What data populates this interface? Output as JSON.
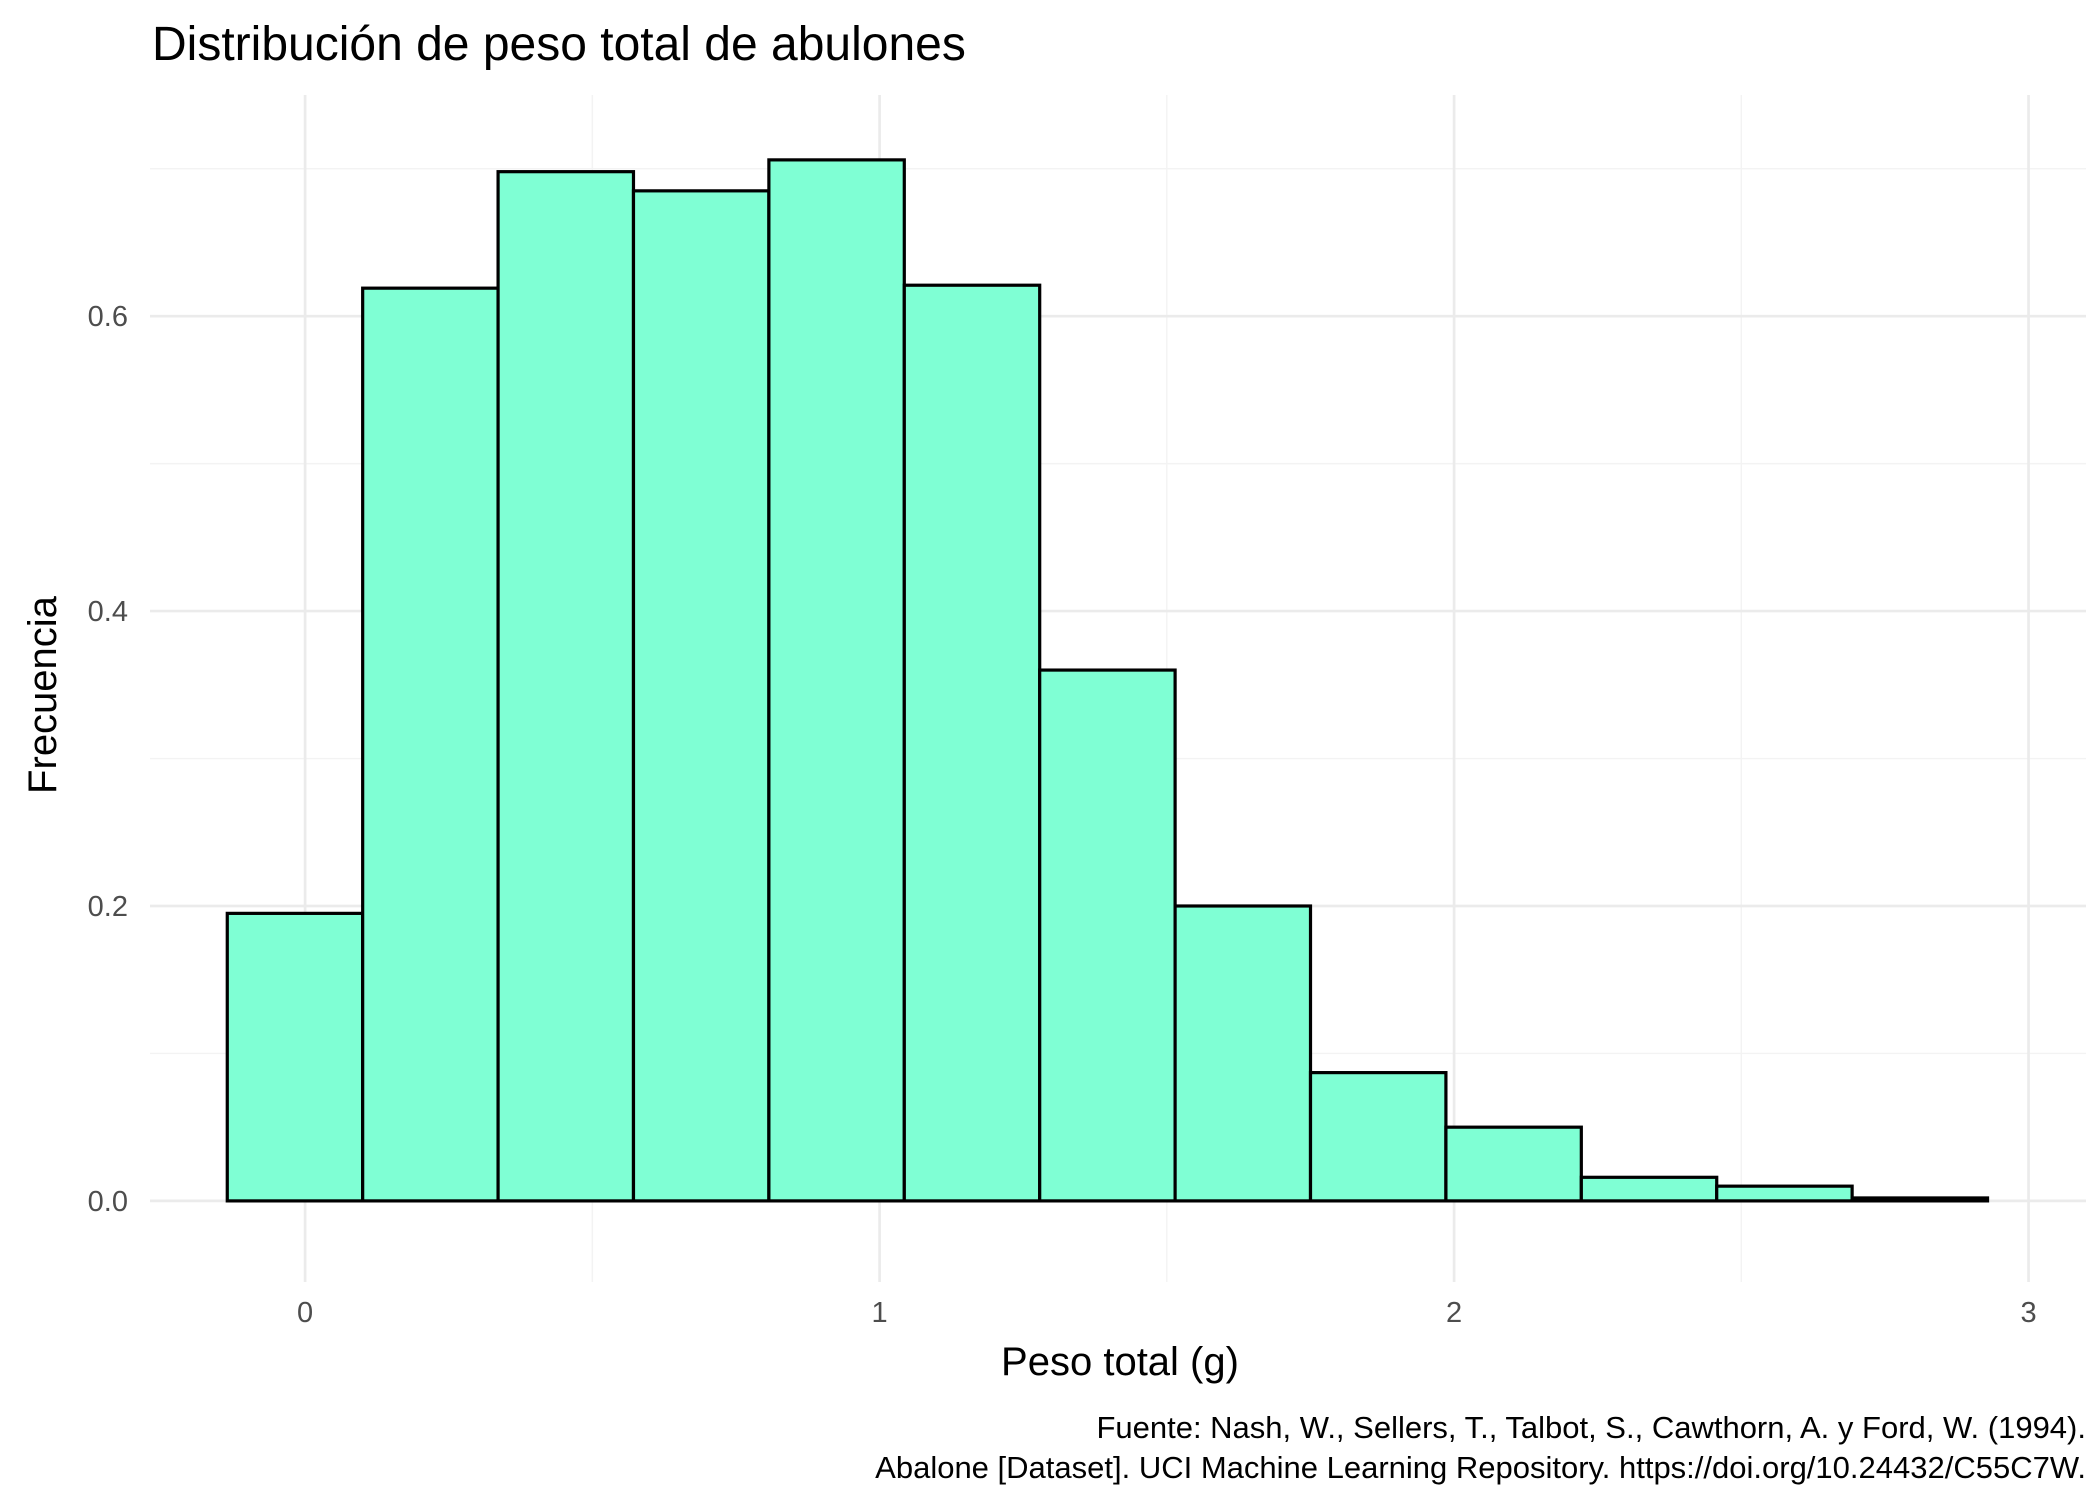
{
  "chart_data": {
    "type": "bar",
    "title": "Distribución de peso total de abulones",
    "xlabel": "Peso total (g)",
    "ylabel": "Frecuencia",
    "caption": [
      "Fuente: Nash, W., Sellers, T., Talbot, S., Cawthorn, A. y Ford, W. (1994).",
      "Abalone [Dataset]. UCI Machine Learning Repository. https://doi.org/10.24432/C55C7W."
    ],
    "xlim": [
      -0.27,
      3.1
    ],
    "ylim": [
      -0.055,
      0.75
    ],
    "x_ticks": [
      0,
      1,
      2,
      3
    ],
    "x_tick_labels": [
      "0",
      "1",
      "2",
      "3"
    ],
    "y_ticks": [
      0.0,
      0.2,
      0.4,
      0.6
    ],
    "y_tick_labels": [
      "0.0",
      "0.2",
      "0.4",
      "0.6"
    ],
    "bin_edges": [
      -0.1355,
      0.1002,
      0.3359,
      0.5716,
      0.8073,
      1.043,
      1.2787,
      1.5144,
      1.7501,
      1.9858,
      2.2215,
      2.4572,
      2.6929,
      2.9286
    ],
    "values": [
      0.195,
      0.619,
      0.698,
      0.685,
      0.706,
      0.621,
      0.36,
      0.2,
      0.087,
      0.05,
      0.016,
      0.01,
      0.002
    ],
    "fill_color": "#7fffd4",
    "edge_color": "#000000",
    "grid": true,
    "legend": "none"
  }
}
